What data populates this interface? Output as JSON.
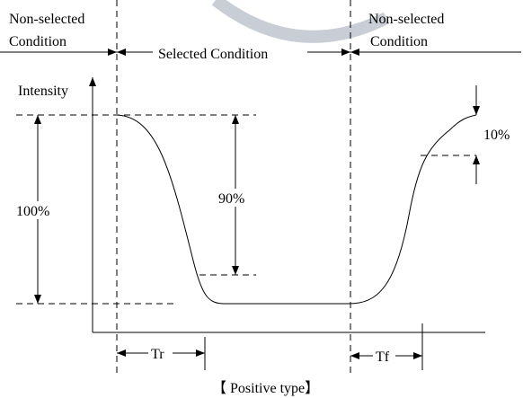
{
  "labels": {
    "left_state": [
      "Non-selected",
      "Condition"
    ],
    "middle_state": "Selected Condition",
    "right_state": [
      "Non-selected",
      "Condition"
    ],
    "y_axis": "Intensity",
    "full_level": "100%",
    "rise_level": "90%",
    "fall_level": "10%",
    "rise_time": "Tr",
    "fall_time": "Tf",
    "caption": "【 Positive type】"
  }
}
